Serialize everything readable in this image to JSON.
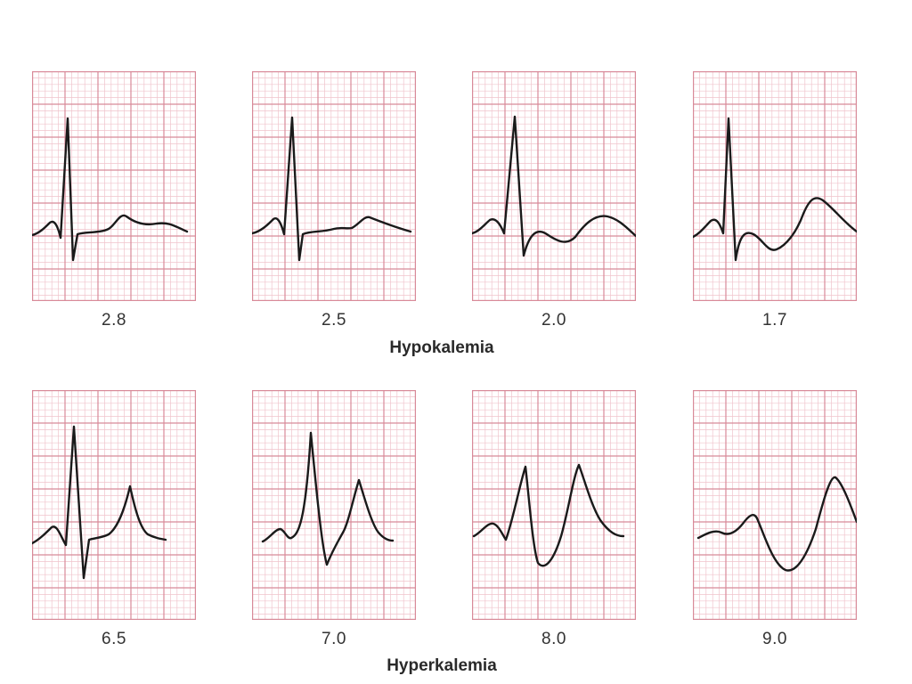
{
  "colors": {
    "grid_major": "#d88a99",
    "grid_minor": "#f0c4cc",
    "trace": "#1a1a1a",
    "background": "#ffffff"
  },
  "groups": [
    {
      "title": "Hypokalemia",
      "panels": [
        {
          "label": "2.8"
        },
        {
          "label": "2.5"
        },
        {
          "label": "2.0"
        },
        {
          "label": "1.7"
        }
      ]
    },
    {
      "title": "Hyperkalemia",
      "panels": [
        {
          "label": "6.5"
        },
        {
          "label": "7.0"
        },
        {
          "label": "8.0"
        },
        {
          "label": "9.0"
        }
      ]
    }
  ]
}
